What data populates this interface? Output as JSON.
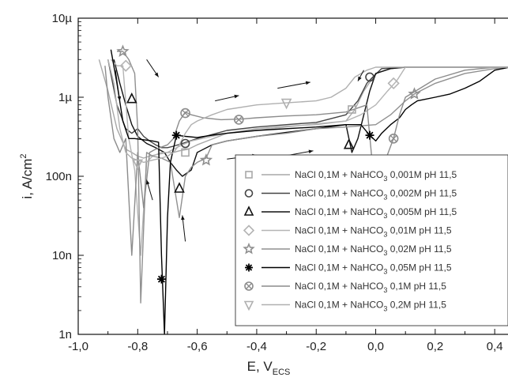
{
  "chart_data": {
    "type": "line",
    "xlabel_main": "E, V",
    "xlabel_sub": "ECS",
    "ylabel_main": "i, A/cm",
    "ylabel_sup": "2",
    "xlim": [
      -1.0,
      0.45
    ],
    "ylim": [
      1e-09,
      1e-05
    ],
    "y_scale": "log",
    "x_ticks": [
      {
        "v": -1.0,
        "label": "-1,0"
      },
      {
        "v": -0.8,
        "label": "-0,8"
      },
      {
        "v": -0.6,
        "label": "-0,6"
      },
      {
        "v": -0.4,
        "label": "-0,4"
      },
      {
        "v": -0.2,
        "label": "-0,2"
      },
      {
        "v": 0.0,
        "label": "0,0"
      },
      {
        "v": 0.2,
        "label": "0,2"
      },
      {
        "v": 0.4,
        "label": "0,4"
      }
    ],
    "y_ticks": [
      {
        "v": 1e-09,
        "label": "1n"
      },
      {
        "v": 1e-08,
        "label": "10n"
      },
      {
        "v": 1e-07,
        "label": "100n"
      },
      {
        "v": 1e-06,
        "label": "1µ"
      },
      {
        "v": 1e-05,
        "label": "10µ"
      }
    ],
    "legend_position": "bottom-right",
    "series": [
      {
        "name": "NaCl 0,1M + NaHCO3 0,001M pH 11,5",
        "legend": {
          "pre": "NaCl 0,1M + NaHCO",
          "sub": "3",
          "post": " 0,001M pH 11,5"
        },
        "marker": "square",
        "color": "#a8a8a8",
        "x": [
          -0.93,
          -0.9,
          -0.87,
          -0.84,
          -0.82,
          -0.8,
          -0.78,
          -0.76,
          -0.73,
          -0.7,
          -0.68,
          -0.66,
          -0.63,
          -0.6,
          -0.5,
          -0.4,
          -0.3,
          -0.2,
          -0.1,
          -0.07,
          -0.04,
          0.0,
          0.05,
          0.1,
          0.2,
          0.3,
          0.4,
          0.45
        ],
        "y": [
          3e-06,
          1.2e-06,
          4e-07,
          2.2e-07,
          2e-07,
          1.8e-07,
          1.7e-07,
          1.8e-07,
          1.9e-07,
          2e-07,
          2e-07,
          2.1e-07,
          2.2e-07,
          2.5e-07,
          3.5e-07,
          4e-07,
          4.3e-07,
          4.5e-07,
          5e-07,
          7e-07,
          1.2e-06,
          2e-06,
          2.3e-06,
          2.4e-06,
          2.4e-06,
          2.4e-06,
          2.4e-06,
          2.4e-06
        ],
        "markers_at": [
          [
            -0.64,
            2e-07
          ],
          [
            -0.08,
            7e-07
          ]
        ]
      },
      {
        "name": "NaCl 0,1M + NaHCO3 0,002M pH 11,5",
        "legend": {
          "pre": "NaCl 0,1M + NaHCO",
          "sub": "3",
          "post": " 0,002M pH 11,5"
        },
        "marker": "circle",
        "color": "#444444",
        "x": [
          -0.9,
          -0.87,
          -0.84,
          -0.82,
          -0.8,
          -0.78,
          -0.76,
          -0.74,
          -0.72,
          -0.7,
          -0.68,
          -0.65,
          -0.6,
          -0.5,
          -0.4,
          -0.3,
          -0.2,
          -0.1,
          -0.06,
          -0.03,
          -0.01,
          0.02,
          0.1,
          0.2,
          0.3,
          0.4,
          0.45
        ],
        "y": [
          3e-06,
          8e-07,
          4e-07,
          3.5e-07,
          4e-07,
          3.2e-07,
          2.8e-07,
          2.5e-07,
          2.3e-07,
          2.3e-07,
          2.4e-07,
          2.6e-07,
          3e-07,
          3.8e-07,
          4.2e-07,
          4.5e-07,
          4.8e-07,
          6e-07,
          9e-07,
          1.5e-06,
          1.8e-06,
          2.3e-06,
          2.4e-06,
          2.4e-06,
          2.4e-06,
          2.4e-06,
          2.4e-06
        ],
        "markers_at": [
          [
            -0.64,
            2.6e-07
          ],
          [
            -0.02,
            1.8e-06
          ]
        ]
      },
      {
        "name": "NaCl 0,1M + NaHCO3 0,005M pH 11,5",
        "legend": {
          "pre": "NaCl 0,1M + NaHCO",
          "sub": "3",
          "post": " 0,005M pH 11,5"
        },
        "marker": "triangle",
        "color": "#111111",
        "x": [
          -0.88,
          -0.86,
          -0.84,
          -0.82,
          -0.8,
          -0.77,
          -0.74,
          -0.71,
          -0.69,
          -0.67,
          -0.65,
          -0.62,
          -0.6,
          -0.55,
          -0.5,
          -0.4,
          -0.3,
          -0.2,
          -0.1,
          -0.08,
          -0.06,
          -0.04,
          -0.02,
          0.0,
          0.05,
          0.1,
          0.2,
          0.3,
          0.4,
          0.45
        ],
        "y": [
          3e-06,
          1.5e-06,
          8e-07,
          4.5e-07,
          3.2e-07,
          2.6e-07,
          2.3e-07,
          2e-07,
          1.5e-07,
          1.2e-07,
          1e-07,
          1.2e-07,
          2e-07,
          2.5e-07,
          2.8e-07,
          3.2e-07,
          3.6e-07,
          4e-07,
          4.5e-07,
          2e-07,
          3e-07,
          6e-07,
          1.2e-06,
          2e-06,
          2.3e-06,
          2.4e-06,
          2.4e-06,
          2.4e-06,
          2.4e-06,
          2.4e-06
        ],
        "markers_at": [
          [
            -0.82,
            9.5e-07
          ],
          [
            -0.66,
            7e-08
          ],
          [
            -0.09,
            2.5e-07
          ]
        ]
      },
      {
        "name": "NaCl 0,1M + NaHCO3 0,01M pH 11,5",
        "legend": {
          "pre": "NaCl 0,1M + NaHCO",
          "sub": "3",
          "post": " 0,01M pH 11,5"
        },
        "marker": "diamond",
        "color": "#b4b4b4",
        "x": [
          -0.89,
          -0.87,
          -0.85,
          -0.83,
          -0.81,
          -0.79,
          -0.77,
          -0.75,
          -0.72,
          -0.7,
          -0.68,
          -0.65,
          -0.62,
          -0.55,
          -0.5,
          -0.4,
          -0.3,
          -0.2,
          -0.1,
          -0.05,
          0.0,
          0.04,
          0.07,
          0.1,
          0.2,
          0.3,
          0.4,
          0.45
        ],
        "y": [
          3e-06,
          2.5e-06,
          2.5e-06,
          3e-07,
          1.2e-07,
          1e-08,
          1.5e-07,
          1.8e-07,
          2e-07,
          2e-07,
          2.2e-07,
          2.5e-07,
          2.8e-07,
          3.2e-07,
          3.5e-07,
          3.8e-07,
          4.2e-07,
          4.6e-07,
          5e-07,
          6e-07,
          8e-07,
          1.2e-06,
          1.6e-06,
          2.4e-06,
          2.4e-06,
          2.4e-06,
          2.4e-06,
          2.4e-06
        ],
        "markers_at": [
          [
            -0.84,
            2.5e-06
          ],
          [
            0.06,
            1.5e-06
          ]
        ]
      },
      {
        "name": "NaCl 0,1M + NaHCO3 0,02M pH 11,5",
        "legend": {
          "pre": "NaCl 0,1M + NaHCO",
          "sub": "3",
          "post": " 0,02M pH 11,5"
        },
        "marker": "star",
        "color": "#909090",
        "x": [
          -0.87,
          -0.85,
          -0.83,
          -0.81,
          -0.8,
          -0.79,
          -0.77,
          -0.75,
          -0.72,
          -0.69,
          -0.66,
          -0.64,
          -0.62,
          -0.6,
          -0.57,
          -0.55,
          -0.5,
          -0.4,
          -0.3,
          -0.2,
          -0.1,
          0.0,
          0.05,
          0.1,
          0.13,
          0.2,
          0.3,
          0.4,
          0.45
        ],
        "y": [
          3.8e-06,
          3.8e-06,
          3e-06,
          2e-06,
          4e-07,
          2.5e-09,
          2e-07,
          1.8e-07,
          1.7e-07,
          1.5e-07,
          3e-08,
          1e-07,
          1.3e-07,
          1.5e-07,
          1.7e-07,
          2.5e-07,
          2.8e-07,
          3.2e-07,
          3.5e-07,
          4e-07,
          4.2e-07,
          4.5e-07,
          6e-07,
          9e-07,
          1.1e-06,
          1.5e-06,
          2e-06,
          2.3e-06,
          2.4e-06
        ],
        "markers_at": [
          [
            -0.85,
            3.8e-06
          ],
          [
            -0.57,
            1.6e-07
          ],
          [
            0.13,
            1.1e-06
          ]
        ]
      },
      {
        "name": "NaCl 0,1M + NaHCO3 0,05M pH 11,5",
        "legend": {
          "pre": "NaCl 0,1M + NaHCO",
          "sub": "3",
          "post": " 0,05M pH 11,5"
        },
        "marker": "asterisk",
        "color": "#000000",
        "x": [
          -0.89,
          -0.87,
          -0.85,
          -0.83,
          -0.81,
          -0.78,
          -0.75,
          -0.73,
          -0.72,
          -0.71,
          -0.7,
          -0.69,
          -0.67,
          -0.64,
          -0.6,
          -0.55,
          -0.5,
          -0.4,
          -0.3,
          -0.2,
          -0.1,
          -0.05,
          -0.02,
          0.0,
          0.02,
          0.05,
          0.08,
          0.1,
          0.12,
          0.14,
          0.2,
          0.25,
          0.3,
          0.35,
          0.4,
          0.45
        ],
        "y": [
          4e-06,
          1.5e-06,
          5e-07,
          3e-07,
          3e-07,
          2.9e-07,
          2.8e-07,
          2.7e-07,
          1e-08,
          1e-09,
          3e-08,
          1.5e-07,
          3.3e-07,
          3.2e-07,
          3.1e-07,
          3.3e-07,
          3.5e-07,
          3.8e-07,
          4e-07,
          4.2e-07,
          4.5e-07,
          4.5e-07,
          3.3e-07,
          2.8e-07,
          3.5e-07,
          4.5e-07,
          5.5e-07,
          7e-07,
          8e-07,
          9e-07,
          1e-06,
          1.1e-06,
          1.3e-06,
          1.6e-06,
          2.2e-06,
          2.4e-06
        ],
        "markers_at": [
          [
            -0.72,
            5e-09
          ],
          [
            -0.67,
            3.3e-07
          ],
          [
            -0.02,
            3.3e-07
          ]
        ]
      },
      {
        "name": "NaCl 0,1M + NaHCO3 0,1M pH 11,5",
        "legend": {
          "pre": "NaCl 0,1M + NaHCO",
          "sub": "3",
          "post": " 0,1M pH 11,5"
        },
        "marker": "crossed-circle",
        "color": "#8c8c8c",
        "x": [
          -0.91,
          -0.9,
          -0.88,
          -0.86,
          -0.84,
          -0.82,
          -0.8,
          -0.78,
          -0.76,
          -0.74,
          -0.7,
          -0.68,
          -0.66,
          -0.64,
          -0.62,
          -0.58,
          -0.52,
          -0.45,
          -0.4,
          -0.3,
          -0.2,
          -0.1,
          -0.03,
          0.0,
          0.03,
          0.06,
          0.08,
          0.1,
          0.2,
          0.3,
          0.4,
          0.45
        ],
        "y": [
          2.5e-06,
          1e-06,
          3e-07,
          2e-07,
          3e-07,
          1e-08,
          2e-07,
          4e-08,
          2e-07,
          2.2e-07,
          2.5e-07,
          3e-07,
          5e-07,
          6.5e-07,
          6e-07,
          5.5e-07,
          5.2e-07,
          5.3e-07,
          5.5e-07,
          5.8e-07,
          6e-07,
          6.5e-07,
          8e-07,
          5e-08,
          1.5e-07,
          3e-07,
          6e-07,
          1e-06,
          1.7e-06,
          2.2e-06,
          2.4e-06,
          2.4e-06
        ],
        "markers_at": [
          [
            -0.64,
            6.3e-07
          ],
          [
            -0.46,
            5.2e-07
          ],
          [
            0.06,
            3e-07
          ]
        ]
      },
      {
        "name": "NaCl 0,1M + NaHCO3 0,2M pH 11,5",
        "legend": {
          "pre": "NaCl 0,1M + NaHCO",
          "sub": "3",
          "post": " 0,2M pH 11,5"
        },
        "marker": "inv-triangle",
        "color": "#b0b0b0",
        "x": [
          -0.9,
          -0.88,
          -0.86,
          -0.84,
          -0.82,
          -0.8,
          -0.78,
          -0.75,
          -0.72,
          -0.7,
          -0.68,
          -0.66,
          -0.64,
          -0.62,
          -0.6,
          -0.55,
          -0.5,
          -0.4,
          -0.3,
          -0.2,
          -0.15,
          -0.1,
          -0.07,
          -0.03,
          0.0,
          0.05,
          0.1,
          0.2,
          0.3,
          0.4,
          0.45
        ],
        "y": [
          3e-06,
          1.5e-06,
          4e-07,
          2e-07,
          1.7e-07,
          1.6e-07,
          1.5e-07,
          1.6e-07,
          1.7e-07,
          1.8e-07,
          2e-07,
          2.5e-07,
          3.5e-07,
          4.5e-07,
          5e-07,
          6e-07,
          7e-07,
          8e-07,
          8.5e-07,
          9e-07,
          1e-06,
          1.3e-06,
          1.8e-06,
          2.2e-06,
          2.4e-06,
          2.4e-06,
          2.4e-06,
          2.4e-06,
          2.4e-06,
          2.4e-06,
          2.4e-06
        ],
        "markers_at": [
          [
            -0.8,
            1.45e-07
          ],
          [
            -0.3,
            8.5e-07
          ]
        ]
      }
    ],
    "arrows": [
      {
        "from": [
          -0.875,
          2.2e-06
        ],
        "to": [
          -0.86,
          9e-07
        ]
      },
      {
        "from": [
          -0.77,
          3e-06
        ],
        "to": [
          -0.73,
          1.8e-06
        ]
      },
      {
        "from": [
          -0.75,
          5e-08
        ],
        "to": [
          -0.77,
          9e-08
        ]
      },
      {
        "from": [
          -0.64,
          1.5e-08
        ],
        "to": [
          -0.65,
          3.2e-08
        ]
      },
      {
        "from": [
          -0.54,
          9e-07
        ],
        "to": [
          -0.46,
          1.05e-06
        ]
      },
      {
        "from": [
          -0.33,
          1.3e-06
        ],
        "to": [
          -0.22,
          1.55e-06
        ]
      },
      {
        "from": [
          -0.5,
          1.65e-07
        ],
        "to": [
          -0.4,
          1.85e-07
        ]
      },
      {
        "from": [
          -0.31,
          1.8e-07
        ],
        "to": [
          -0.21,
          2.1e-07
        ]
      },
      {
        "from": [
          -0.04,
          2.2e-06
        ],
        "to": [
          -0.06,
          1.6e-06
        ]
      }
    ]
  }
}
